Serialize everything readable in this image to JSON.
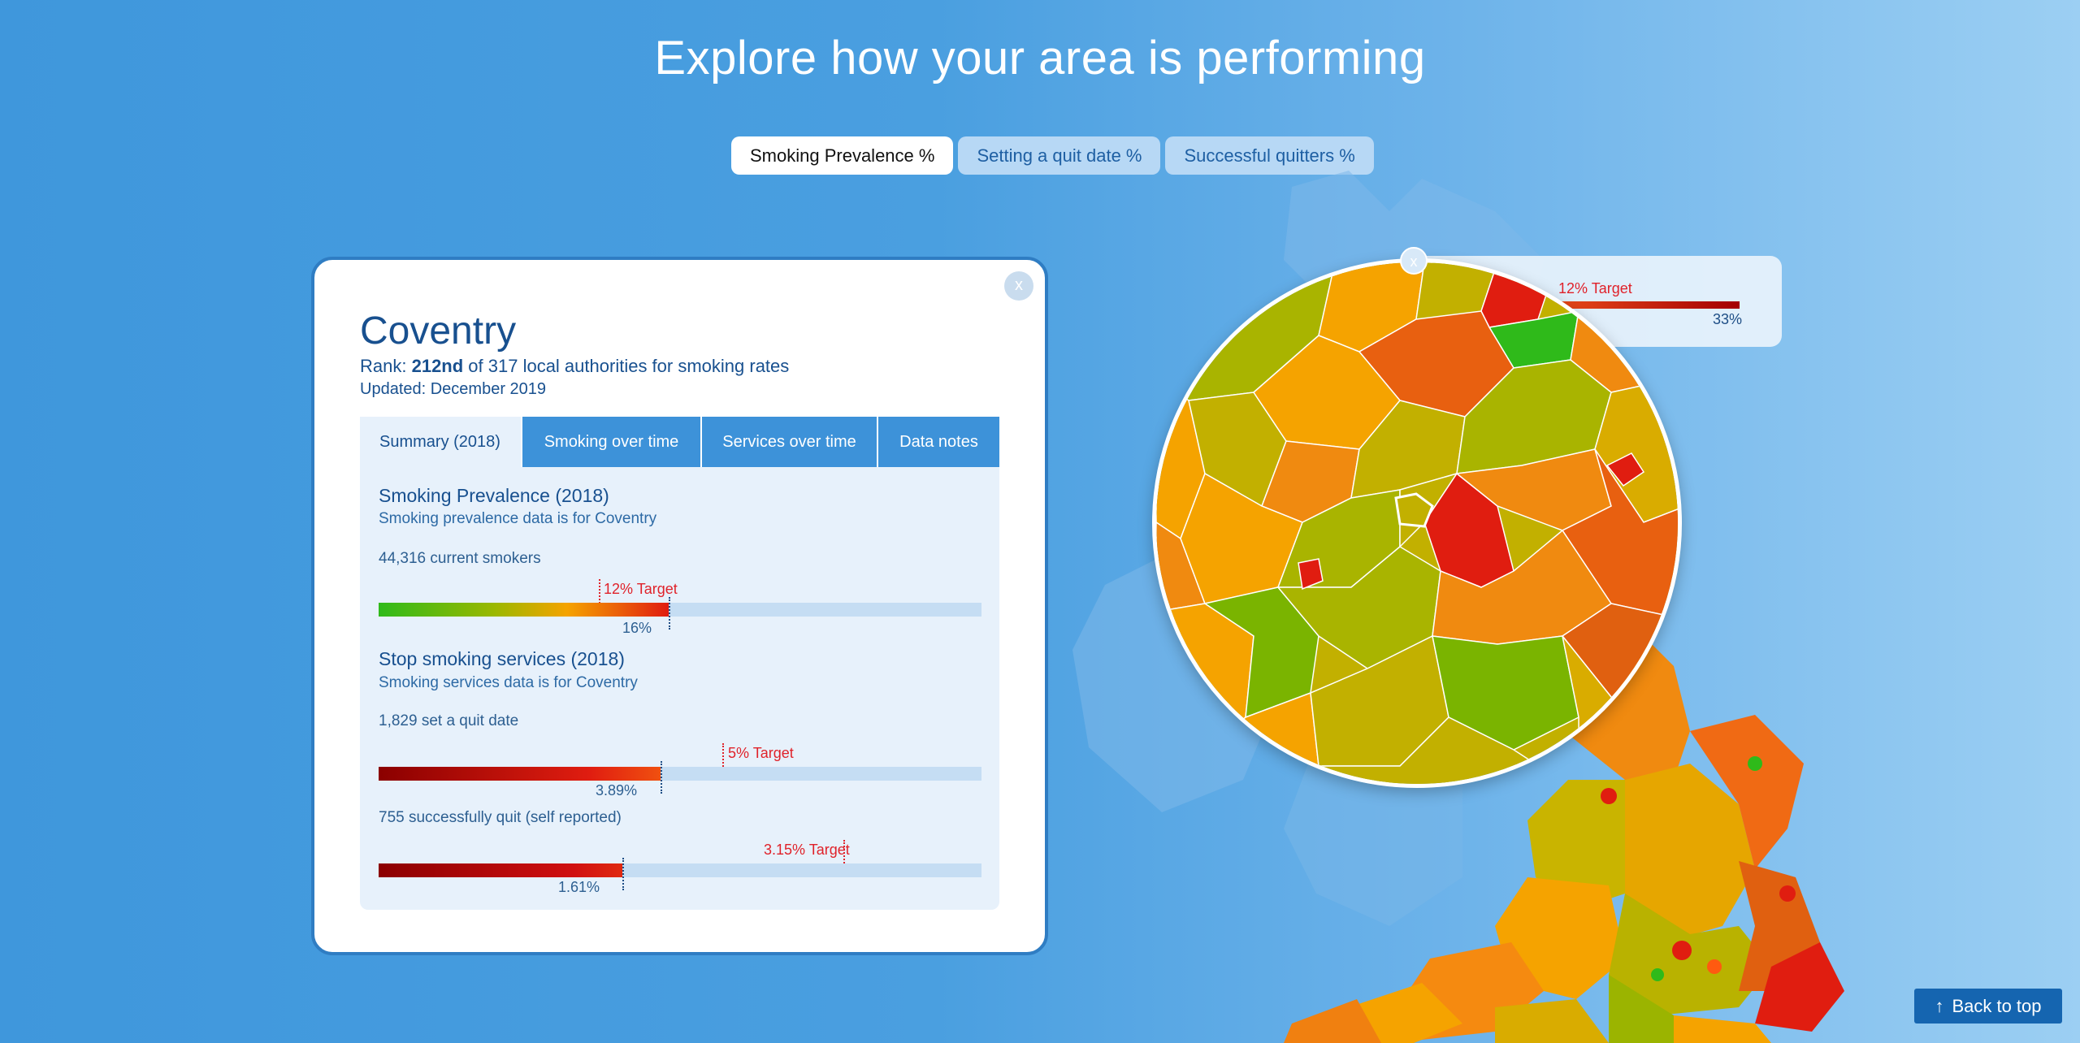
{
  "page": {
    "title": "Explore how your area is performing"
  },
  "metric_tabs": [
    {
      "label": "Smoking Prevalence %",
      "active": true
    },
    {
      "label": "Setting a quit date %",
      "active": false
    },
    {
      "label": "Successful quitters %",
      "active": false
    }
  ],
  "colors": {
    "good": "#2fba1a",
    "mid": "#f5a300",
    "bad": "#e01d10",
    "deep_bad": "#8b0000",
    "target": "#e0222a",
    "brand_blue": "#1565b0"
  },
  "magnifier": {
    "close_label": "x",
    "tooltip": {
      "target_label": "12% Target",
      "value_label": "33%"
    }
  },
  "card": {
    "close_label": "x",
    "area_name": "Coventry",
    "rank_prefix": "Rank: ",
    "rank_value": "212nd",
    "rank_suffix": " of 317 local authorities for smoking rates",
    "updated": "Updated: December 2019",
    "tabs": [
      {
        "label": "Summary (2018)",
        "active": true
      },
      {
        "label": "Smoking over time",
        "active": false
      },
      {
        "label": "Services over time",
        "active": false
      },
      {
        "label": "Data notes",
        "active": false
      }
    ],
    "prevalence": {
      "title": "Smoking Prevalence (2018)",
      "subtitle": "Smoking prevalence data is for Coventry",
      "stat": "44,316 current smokers",
      "target_label": "12% Target",
      "value_label": "16%"
    },
    "services": {
      "title": "Stop smoking services (2018)",
      "subtitle": "Smoking services data is for Coventry",
      "quit_date": {
        "stat": "1,829 set a quit date",
        "target_label": "5% Target",
        "value_label": "3.89%"
      },
      "quit_success": {
        "stat": "755 successfully quit (self reported)",
        "target_label": "3.15% Target",
        "value_label": "1.61%"
      }
    }
  },
  "footer": {
    "back_to_top": "Back to top",
    "back_icon": "arrow-up-icon"
  }
}
